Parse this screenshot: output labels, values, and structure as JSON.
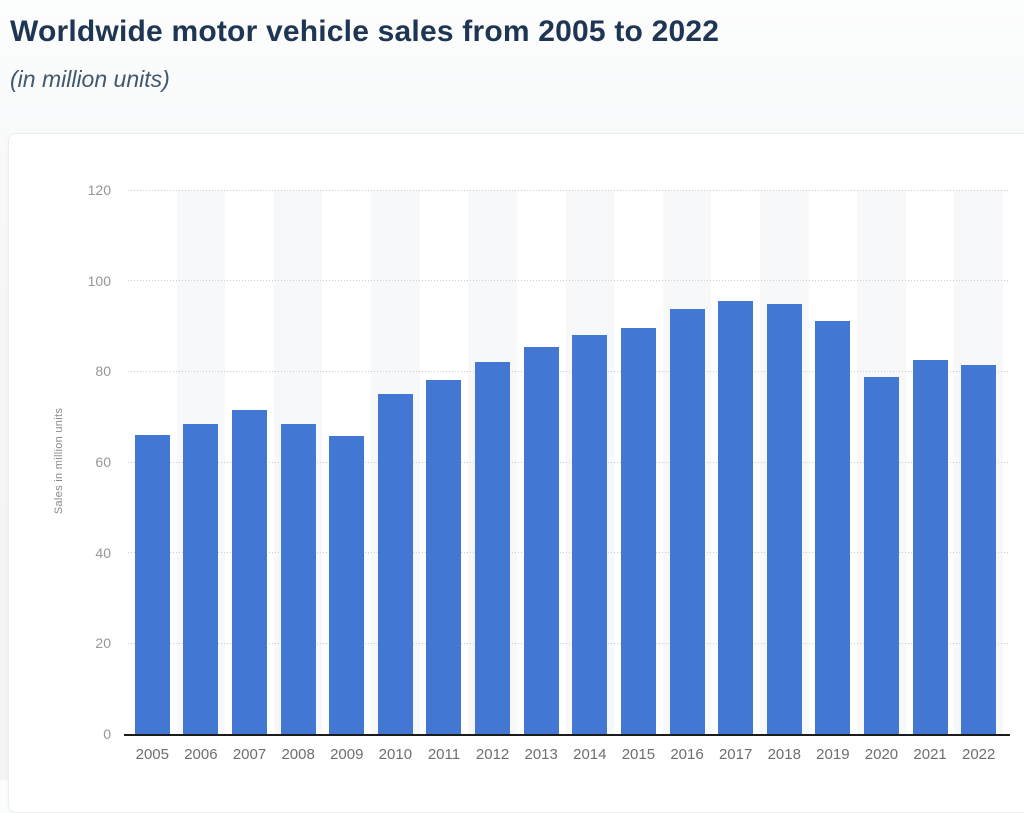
{
  "page": {
    "title": "Worldwide motor vehicle sales from 2005 to 2022",
    "subtitle": "(in million units)"
  },
  "chart_data": {
    "type": "bar",
    "title": "Worldwide motor vehicle sales from 2005 to 2022",
    "subtitle": "(in million units)",
    "xlabel": "",
    "ylabel": "Sales in million units",
    "categories": [
      "2005",
      "2006",
      "2007",
      "2008",
      "2009",
      "2010",
      "2011",
      "2012",
      "2013",
      "2014",
      "2015",
      "2016",
      "2017",
      "2018",
      "2019",
      "2020",
      "2021",
      "2022"
    ],
    "values": [
      66.0,
      68.3,
      71.4,
      68.3,
      65.7,
      75.0,
      78.1,
      82.0,
      85.4,
      88.1,
      89.6,
      93.7,
      95.5,
      94.9,
      91.2,
      78.7,
      82.6,
      81.4
    ],
    "ylim": [
      0,
      120
    ],
    "yticks": [
      0,
      20,
      40,
      60,
      80,
      100,
      120
    ],
    "grid": true,
    "legend_position": "none",
    "colors": {
      "bar": "#4277d4",
      "stripe": "#f7f8f9",
      "gridline": "#cccccc",
      "axis_line": "#1b1b1b",
      "title": "#1e3653",
      "subtitle": "#42586d",
      "tick_label": "#979797",
      "category_label": "#6e6e6e"
    }
  }
}
